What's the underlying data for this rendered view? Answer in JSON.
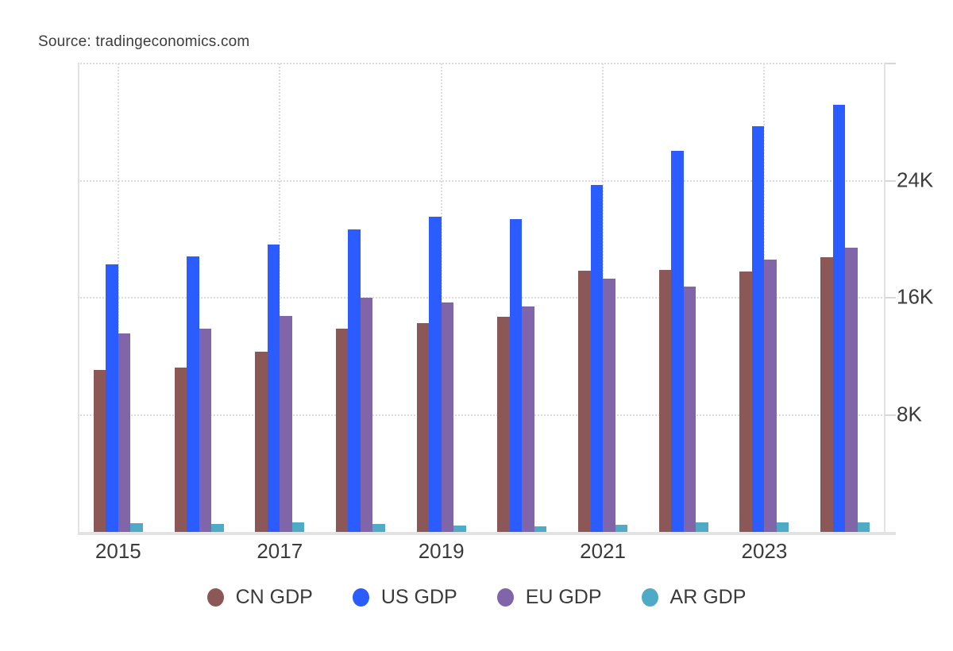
{
  "source_label": "Source: tradingeconomics.com",
  "chart_data": {
    "type": "bar",
    "title": "",
    "xlabel": "",
    "ylabel": "",
    "categories": [
      "2015",
      "2016",
      "2017",
      "2018",
      "2019",
      "2020",
      "2021",
      "2022",
      "2023",
      "2024"
    ],
    "visible_x_tick_labels": [
      "2015",
      "2017",
      "2019",
      "2021",
      "2023"
    ],
    "series": [
      {
        "name": "CN GDP",
        "color": "#8B5757",
        "values": [
          11060,
          11230,
          12310,
          13890,
          14280,
          14690,
          17820,
          17880,
          17800,
          18750
        ]
      },
      {
        "name": "US GDP",
        "color": "#2A5CFF",
        "values": [
          18300,
          18800,
          19610,
          20660,
          21540,
          21350,
          23680,
          26010,
          27720,
          29180
        ]
      },
      {
        "name": "EU GDP",
        "color": "#8066A8",
        "values": [
          13550,
          13890,
          14770,
          15980,
          15690,
          15380,
          17310,
          16750,
          18590,
          19420
        ]
      },
      {
        "name": "AR GDP",
        "color": "#4FAAC5",
        "values": [
          595,
          557,
          644,
          525,
          452,
          386,
          487,
          631,
          646,
          633
        ]
      }
    ],
    "y_ticks": [
      {
        "value": 8000,
        "label": "8K"
      },
      {
        "value": 16000,
        "label": "16K"
      },
      {
        "value": 24000,
        "label": "24K"
      }
    ],
    "ylim": [
      0,
      32000
    ],
    "grid": "dotted",
    "legend_position": "bottom"
  },
  "colors": {
    "background": "#FFFFFF",
    "grid": "#DCDCDC",
    "axis": "#E2E2E2",
    "text": "#3B3B3B"
  }
}
